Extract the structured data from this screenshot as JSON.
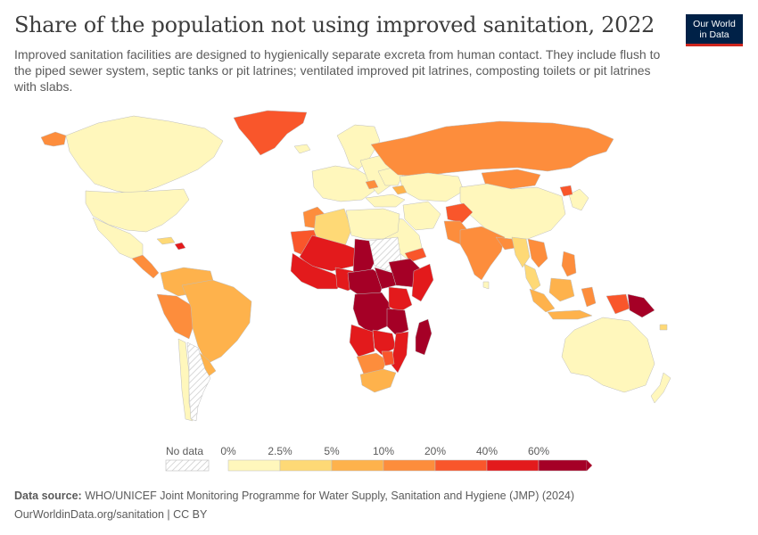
{
  "header": {
    "title": "Share of the population not using improved sanitation, 2022",
    "subtitle": "Improved sanitation facilities are designed to hygienically separate excreta from human contact. They include flush to the piped sewer system, septic tanks or pit latrines; ventilated improved pit latrines, composting toilets or pit latrines with slabs."
  },
  "logo": {
    "line1": "Our World",
    "line2": "in Data",
    "bg": "#002147",
    "accent": "#ce261e"
  },
  "legend": {
    "no_data_label": "No data",
    "ticks": [
      "0%",
      "2.5%",
      "5%",
      "10%",
      "20%",
      "40%",
      "60%"
    ],
    "bins": [
      {
        "from": 0,
        "to": 2.5,
        "color": "#fff7bc"
      },
      {
        "from": 2.5,
        "to": 5,
        "color": "#fed976"
      },
      {
        "from": 5,
        "to": 10,
        "color": "#feb24c"
      },
      {
        "from": 10,
        "to": 20,
        "color": "#fd8d3c"
      },
      {
        "from": 20,
        "to": 40,
        "color": "#f9562b"
      },
      {
        "from": 40,
        "to": 60,
        "color": "#e31a1c"
      },
      {
        "from": 60,
        "to": 100,
        "color": "#a50026"
      }
    ]
  },
  "footer": {
    "source_label": "Data source:",
    "source_text": "WHO/UNICEF Joint Monitoring Programme for Water Supply, Sanitation and Hygiene (JMP) (2024)",
    "url_text": "OurWorldinData.org/sanitation | CC BY"
  }
}
